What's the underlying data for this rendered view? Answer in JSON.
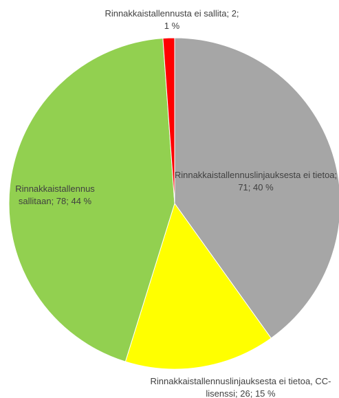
{
  "chart_data": {
    "type": "pie",
    "values": [
      71,
      26,
      78,
      2
    ],
    "value_labels": [
      "Rinnakkaistallennuslinjauksesta ei tietoa; 71; 40 %",
      "Rinnakkaistallennuslinjauksesta ei tietoa, CC-lisenssi; 26; 15 %",
      "Rinnakkaistallennus sallitaan; 78; 44 %",
      "Rinnakkaistallennusta ei sallita; 2; 1 %"
    ],
    "colors": [
      "#a6a6a6",
      "#ffff00",
      "#92d050",
      "#ff0000"
    ]
  }
}
